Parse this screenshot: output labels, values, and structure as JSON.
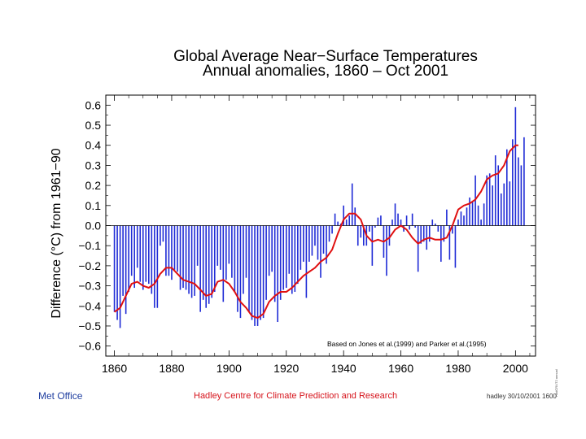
{
  "chart_data": {
    "type": "bar",
    "title": "Global Average Near−Surface Temperatures",
    "subtitle": "Annual anomalies, 1860 – Oct 2001",
    "xlabel": "",
    "ylabel": "Difference (°C) from 1961−90",
    "xlim": [
      1857,
      2007
    ],
    "ylim": [
      -0.65,
      0.65
    ],
    "xticks": [
      1860,
      1880,
      1900,
      1920,
      1940,
      1960,
      1980,
      2000
    ],
    "yticks": [
      -0.6,
      -0.5,
      -0.4,
      -0.3,
      -0.2,
      -0.1,
      0.0,
      0.1,
      0.2,
      0.3,
      0.4,
      0.5,
      0.6
    ],
    "ytick_labels": [
      "−0.6",
      "−0.5",
      "−0.4",
      "−0.3",
      "−0.2",
      "−0.1",
      "0.0",
      "0.1",
      "0.2",
      "0.3",
      "0.4",
      "0.5",
      "0.6"
    ],
    "annotation": "Based on Jones et al.(1999) and Parker et al.(1995)",
    "series": [
      {
        "name": "Annual anomaly",
        "style": "bars",
        "color": "#1f2bd6",
        "x_start": 1860,
        "values": [
          -0.43,
          -0.47,
          -0.51,
          -0.35,
          -0.44,
          -0.33,
          -0.25,
          -0.31,
          -0.21,
          -0.28,
          -0.32,
          -0.28,
          -0.29,
          -0.34,
          -0.41,
          -0.41,
          -0.1,
          -0.08,
          -0.25,
          -0.25,
          -0.27,
          -0.22,
          -0.23,
          -0.32,
          -0.31,
          -0.32,
          -0.34,
          -0.36,
          -0.35,
          -0.2,
          -0.43,
          -0.37,
          -0.41,
          -0.39,
          -0.36,
          -0.33,
          -0.2,
          -0.22,
          -0.38,
          -0.27,
          -0.19,
          -0.26,
          -0.33,
          -0.43,
          -0.46,
          -0.34,
          -0.26,
          -0.43,
          -0.47,
          -0.5,
          -0.5,
          -0.47,
          -0.46,
          -0.37,
          -0.25,
          -0.23,
          -0.38,
          -0.48,
          -0.37,
          -0.32,
          -0.31,
          -0.24,
          -0.34,
          -0.33,
          -0.29,
          -0.22,
          -0.18,
          -0.36,
          -0.18,
          -0.15,
          -0.1,
          -0.17,
          -0.26,
          -0.14,
          -0.19,
          -0.08,
          -0.04,
          0.06,
          0.02,
          0.01,
          0.1,
          0.03,
          0.05,
          0.21,
          0.09,
          -0.1,
          -0.06,
          -0.1,
          -0.1,
          -0.03,
          -0.2,
          -0.01,
          0.04,
          0.05,
          -0.16,
          -0.25,
          -0.1,
          0.03,
          0.11,
          0.06,
          0.03,
          -0.03,
          0.05,
          -0.02,
          0.06,
          -0.01,
          -0.23,
          -0.09,
          -0.08,
          -0.12,
          -0.08,
          0.03,
          0.01,
          -0.03,
          -0.18,
          -0.08,
          0.08,
          -0.17,
          -0.04,
          -0.21,
          0.03,
          0.07,
          0.05,
          0.09,
          0.14,
          0.12,
          0.25,
          0.1,
          0.03,
          0.11,
          0.25,
          0.26,
          0.2,
          0.35,
          0.3,
          0.16,
          0.21,
          0.38,
          0.22,
          0.43,
          0.59,
          0.34,
          0.3,
          0.44
        ]
      },
      {
        "name": "Smoothed curve",
        "style": "line",
        "color": "#e01010",
        "points": [
          [
            1860,
            -0.43
          ],
          [
            1862,
            -0.41
          ],
          [
            1864,
            -0.35
          ],
          [
            1866,
            -0.29
          ],
          [
            1868,
            -0.28
          ],
          [
            1870,
            -0.3
          ],
          [
            1872,
            -0.31
          ],
          [
            1874,
            -0.29
          ],
          [
            1876,
            -0.24
          ],
          [
            1878,
            -0.21
          ],
          [
            1880,
            -0.21
          ],
          [
            1882,
            -0.24
          ],
          [
            1884,
            -0.27
          ],
          [
            1886,
            -0.28
          ],
          [
            1888,
            -0.29
          ],
          [
            1890,
            -0.32
          ],
          [
            1892,
            -0.35
          ],
          [
            1894,
            -0.34
          ],
          [
            1896,
            -0.28
          ],
          [
            1898,
            -0.27
          ],
          [
            1900,
            -0.29
          ],
          [
            1902,
            -0.33
          ],
          [
            1904,
            -0.38
          ],
          [
            1906,
            -0.41
          ],
          [
            1908,
            -0.45
          ],
          [
            1910,
            -0.46
          ],
          [
            1912,
            -0.44
          ],
          [
            1914,
            -0.38
          ],
          [
            1916,
            -0.35
          ],
          [
            1918,
            -0.33
          ],
          [
            1920,
            -0.33
          ],
          [
            1922,
            -0.31
          ],
          [
            1924,
            -0.28
          ],
          [
            1926,
            -0.25
          ],
          [
            1928,
            -0.23
          ],
          [
            1930,
            -0.21
          ],
          [
            1932,
            -0.18
          ],
          [
            1934,
            -0.16
          ],
          [
            1936,
            -0.12
          ],
          [
            1938,
            -0.04
          ],
          [
            1940,
            0.03
          ],
          [
            1942,
            0.06
          ],
          [
            1944,
            0.06
          ],
          [
            1946,
            0.03
          ],
          [
            1948,
            -0.05
          ],
          [
            1950,
            -0.08
          ],
          [
            1952,
            -0.07
          ],
          [
            1954,
            -0.08
          ],
          [
            1956,
            -0.06
          ],
          [
            1958,
            -0.02
          ],
          [
            1960,
            0.0
          ],
          [
            1962,
            -0.02
          ],
          [
            1964,
            -0.06
          ],
          [
            1966,
            -0.09
          ],
          [
            1968,
            -0.07
          ],
          [
            1970,
            -0.06
          ],
          [
            1972,
            -0.07
          ],
          [
            1974,
            -0.07
          ],
          [
            1976,
            -0.06
          ],
          [
            1978,
            0.0
          ],
          [
            1980,
            0.08
          ],
          [
            1982,
            0.1
          ],
          [
            1984,
            0.11
          ],
          [
            1986,
            0.13
          ],
          [
            1988,
            0.17
          ],
          [
            1990,
            0.23
          ],
          [
            1992,
            0.25
          ],
          [
            1994,
            0.26
          ],
          [
            1996,
            0.3
          ],
          [
            1998,
            0.37
          ],
          [
            2000,
            0.4
          ],
          [
            2001,
            0.4
          ]
        ]
      }
    ]
  },
  "footer": {
    "org": "Met Office",
    "centre": "Hadley Centre for Climate Prediction and Research",
    "stamp": "hadley 30/10/2001 1600",
    "side_code": "HadCRUT2 annual"
  }
}
